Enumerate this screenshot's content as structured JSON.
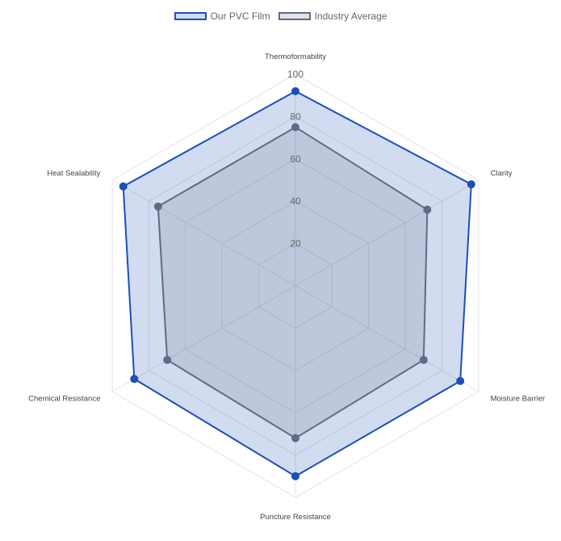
{
  "chart_data": {
    "type": "radar",
    "categories": [
      "Thermoformability",
      "Clarity",
      "Moisture Barrier",
      "Puncture Resistance",
      "Chemical Resistance",
      "Heat Sealability"
    ],
    "series": [
      {
        "name": "Our PVC Film",
        "values": [
          92,
          96,
          90,
          90,
          88,
          94
        ],
        "color": "#1c4fb8",
        "fill": "rgba(28,79,184,0.2)"
      },
      {
        "name": "Industry Average",
        "values": [
          75,
          72,
          70,
          72,
          70,
          75
        ],
        "color": "#5f6b84",
        "fill": "rgba(110,118,140,0.2)"
      }
    ],
    "r_range": [
      0,
      100
    ],
    "ticks": [
      "20",
      "40",
      "60",
      "80",
      "100"
    ],
    "legend_position": "top",
    "grid": true
  }
}
